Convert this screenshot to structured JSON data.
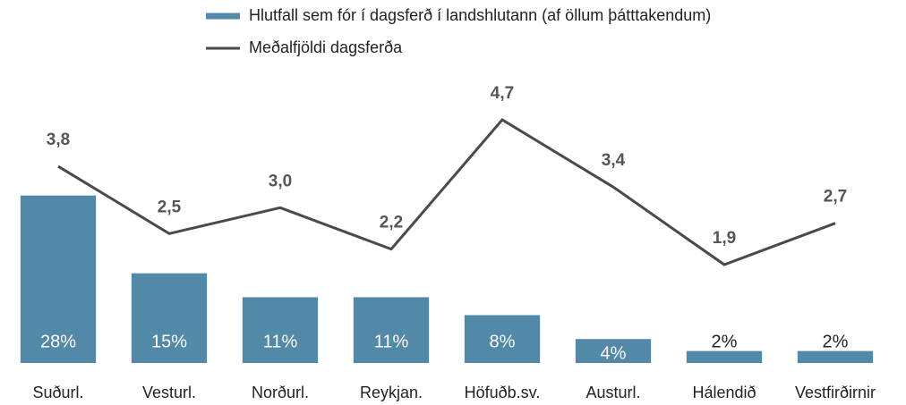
{
  "chart_data": {
    "type": "bar-line",
    "categories": [
      "Suðurl.",
      "Vesturl.",
      "Norðurl.",
      "Reykjan.",
      "Höfuðb.sv.",
      "Austurl.",
      "Hálendið",
      "Vestfirðirnir"
    ],
    "series": [
      {
        "name": "Hlutfall sem fór í dagsferð í landshlutann (af öllum þátttakendum)",
        "type": "bar",
        "color": "#5288a8",
        "values": [
          28,
          15,
          11,
          11,
          8,
          4,
          2,
          2
        ],
        "value_labels": [
          "28%",
          "15%",
          "11%",
          "11%",
          "8%",
          "4%",
          "2%",
          "2%"
        ]
      },
      {
        "name": "Meðalfjöldi dagsferða",
        "type": "line",
        "axis": "y2",
        "color": "#4a4a4a",
        "values": [
          3.8,
          2.5,
          3.0,
          2.2,
          4.7,
          3.4,
          1.9,
          2.7
        ],
        "value_labels": [
          "3,8",
          "2,5",
          "3,0",
          "2,2",
          "4,7",
          "3,4",
          "1,9",
          "2,7"
        ]
      }
    ],
    "ylim": [
      0,
      45
    ],
    "y2lim": [
      0,
      5.2
    ]
  }
}
